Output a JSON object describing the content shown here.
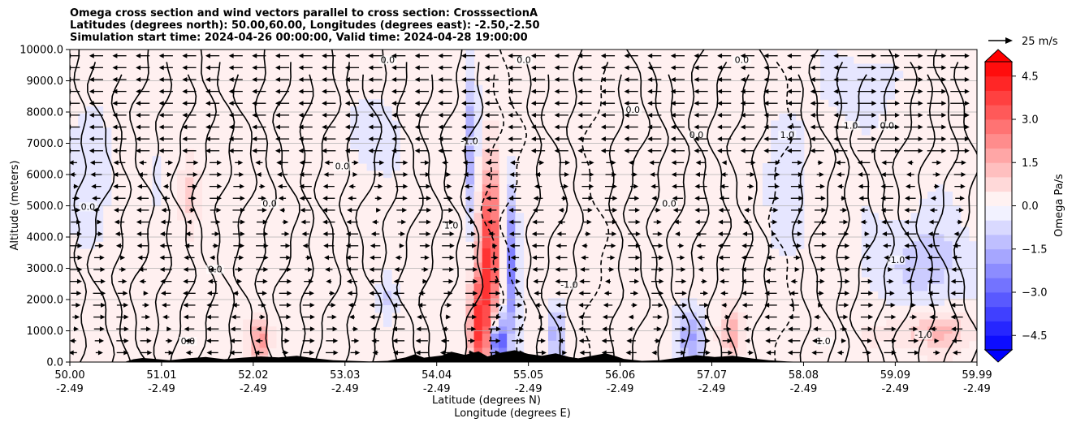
{
  "chart_data": {
    "type": "contour",
    "title_lines": [
      "Omega cross section and wind vectors parallel to cross section: CrosssectionA",
      "Latitudes (degrees north): 50.00,60.00, Longitudes (degrees east): -2.50,-2.50",
      "Simulation start time: 2024-04-26 00:00:00, Valid time: 2024-04-28 19:00:00"
    ],
    "ylabel": "Altitude (meters)",
    "xlabel_lat": "Latitude (degrees N)",
    "xlabel_lon": "Longitude (degrees E)",
    "ylim": [
      0,
      10000
    ],
    "y_ticks": [
      0,
      1000,
      2000,
      3000,
      4000,
      5000,
      6000,
      7000,
      8000,
      9000,
      10000
    ],
    "y_tick_labels": [
      "0.0",
      "1000.0",
      "2000.0",
      "3000.0",
      "4000.0",
      "5000.0",
      "6000.0",
      "7000.0",
      "8000.0",
      "9000.0",
      "10000.0"
    ],
    "xlim": [
      50.0,
      59.99
    ],
    "x_ticks": [
      50.0,
      51.01,
      52.02,
      53.03,
      54.04,
      55.05,
      56.06,
      57.07,
      58.08,
      59.09,
      59.99
    ],
    "x_tick_lat_labels": [
      "50.00",
      "51.01",
      "52.02",
      "53.03",
      "54.04",
      "55.05",
      "56.06",
      "57.07",
      "58.08",
      "59.09",
      "59.99"
    ],
    "x_tick_lon_labels": [
      "-2.49",
      "-2.49",
      "-2.49",
      "-2.49",
      "-2.49",
      "-2.49",
      "-2.49",
      "-2.49",
      "-2.49",
      "-2.49",
      "-2.49"
    ],
    "grid": "horizontal",
    "colorbar": {
      "label": "Omega Pa/s",
      "range": [
        -5.0,
        5.0
      ],
      "levels_step": 0.5,
      "tick_values": [
        -4.5,
        -3.0,
        -1.5,
        0.0,
        1.5,
        3.0,
        4.5
      ],
      "tick_labels": [
        "−4.5",
        "−3.0",
        "−1.5",
        "0.0",
        "1.5",
        "3.0",
        "4.5"
      ],
      "colormap": "bwr",
      "extend": "both"
    },
    "quiver_key": {
      "label": "25 m/s",
      "speed": 25
    },
    "contour_levels_labeled": [
      -1.0,
      0.0,
      1.0
    ],
    "contour_label_texts": [
      "0.0",
      "1.0",
      "-1.0"
    ],
    "terrain": [
      [
        50.6,
        0
      ],
      [
        50.7,
        90
      ],
      [
        50.8,
        130
      ],
      [
        50.9,
        110
      ],
      [
        51.1,
        60
      ],
      [
        51.3,
        120
      ],
      [
        51.5,
        160
      ],
      [
        51.7,
        90
      ],
      [
        51.9,
        140
      ],
      [
        52.1,
        180
      ],
      [
        52.3,
        150
      ],
      [
        52.5,
        200
      ],
      [
        52.7,
        120
      ],
      [
        52.9,
        60
      ],
      [
        53.1,
        40
      ],
      [
        53.3,
        20
      ],
      [
        53.5,
        40
      ],
      [
        53.7,
        150
      ],
      [
        53.8,
        250
      ],
      [
        53.9,
        140
      ],
      [
        54.1,
        210
      ],
      [
        54.2,
        330
      ],
      [
        54.35,
        230
      ],
      [
        54.5,
        340
      ],
      [
        54.6,
        180
      ],
      [
        54.75,
        300
      ],
      [
        54.9,
        380
      ],
      [
        55.05,
        260
      ],
      [
        55.2,
        200
      ],
      [
        55.35,
        280
      ],
      [
        55.5,
        160
      ],
      [
        55.6,
        120
      ],
      [
        55.75,
        200
      ],
      [
        55.9,
        280
      ],
      [
        56.0,
        200
      ],
      [
        56.1,
        100
      ],
      [
        56.3,
        40
      ],
      [
        56.5,
        60
      ],
      [
        56.7,
        140
      ],
      [
        56.9,
        220
      ],
      [
        57.1,
        160
      ],
      [
        57.3,
        200
      ],
      [
        57.5,
        120
      ],
      [
        57.7,
        60
      ],
      [
        57.9,
        20
      ],
      [
        58.1,
        0
      ]
    ]
  }
}
